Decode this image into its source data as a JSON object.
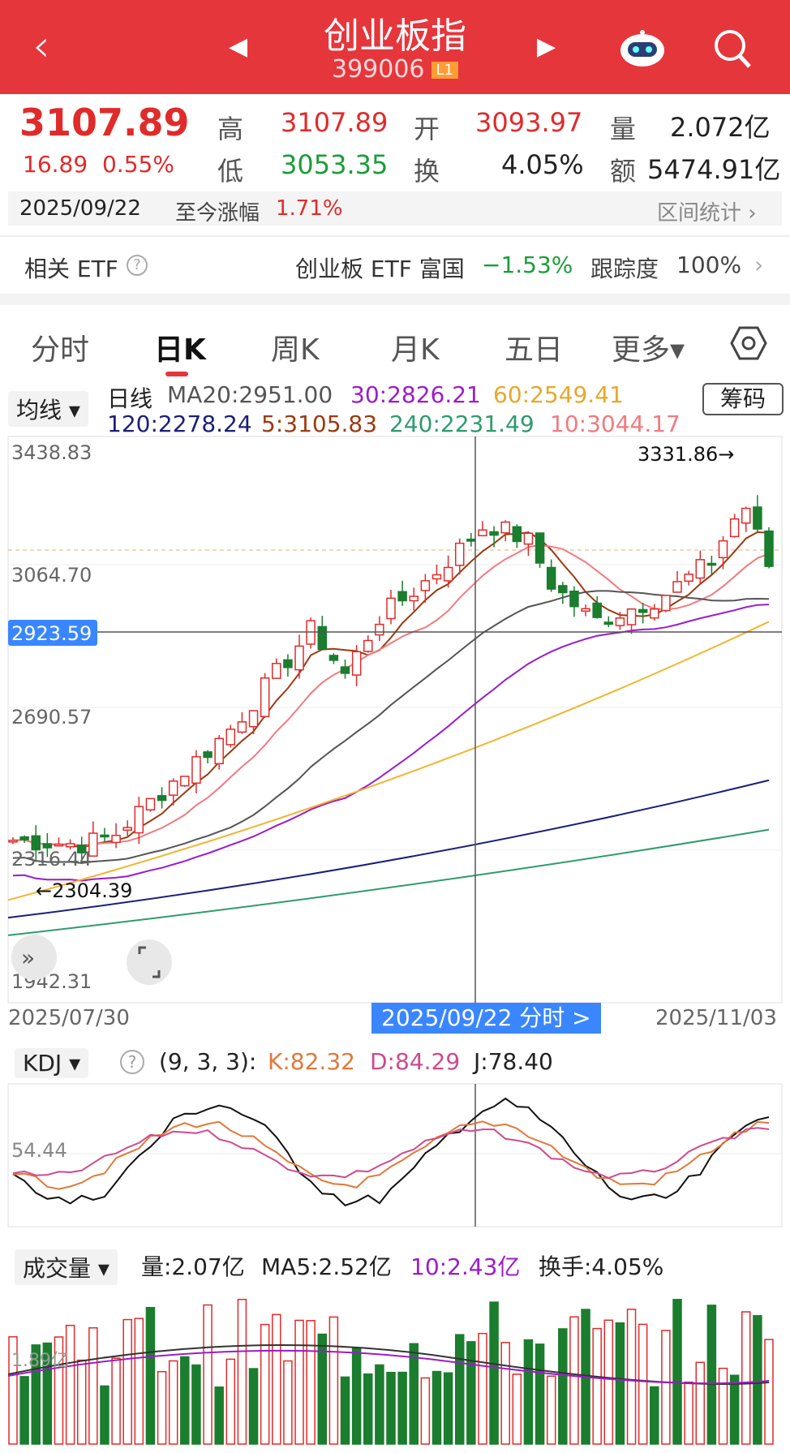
{
  "header": {
    "title": "创业板指",
    "code": "399006",
    "level": "L1"
  },
  "quote": {
    "price": "3107.89",
    "change": "16.89",
    "change_pct": "0.55%",
    "high_label": "高",
    "high": "3107.89",
    "open_label": "开",
    "open": "3093.97",
    "vol_label": "量",
    "vol": "2.072亿",
    "low_label": "低",
    "low": "3053.35",
    "turn_label": "换",
    "turn": "4.05%",
    "amt_label": "额",
    "amt": "5474.91亿"
  },
  "datebar": {
    "date": "2025/09/22",
    "since_label": "至今涨幅",
    "since_value": "1.71%",
    "stats_label": "区间统计 ›"
  },
  "etf": {
    "label": "相关 ETF",
    "name": "创业板 ETF 富国",
    "change": "−1.53%",
    "track_label": "跟踪度",
    "track_value": "100%"
  },
  "tabs": [
    "分时",
    "日K",
    "周K",
    "月K",
    "五日",
    "更多▾"
  ],
  "ma": {
    "selector": "均线 ▾",
    "period": "日线",
    "ma20": "MA20:2951.00",
    "ma30": "30:2826.21",
    "ma60": "60:2549.41",
    "ma120": "120:2278.24",
    "ma5": "5:3105.83",
    "ma240": "240:2231.49",
    "ma10": "10:3044.17",
    "chips": "筹码"
  },
  "kchart": {
    "y_labels": [
      "3438.83",
      "3064.70",
      "2690.57",
      "2316.44",
      "1942.31"
    ],
    "cursor_price": "2923.59",
    "max_label": "3331.86→",
    "min_label": "←2304.39",
    "x_start": "2025/07/30",
    "x_mid": "2025/09/22 分时 >",
    "x_end": "2025/11/03"
  },
  "kdj": {
    "selector": "KDJ ▾",
    "params": "(9, 3, 3):",
    "k": "K:82.32",
    "d": "D:84.29",
    "j": "J:78.40",
    "level": "54.44"
  },
  "volume": {
    "selector": "成交量 ▾",
    "vol": "量:2.07亿",
    "ma5": "MA5:2.52亿",
    "ma10": "10:2.43亿",
    "turn": "换手:4.05%",
    "level": "1.89亿"
  },
  "colors": {
    "red": "#e02b2b",
    "green": "#1b7d2e",
    "header": "#e5363c",
    "ma5": "#9b3b12",
    "ma10": "#f07b80",
    "ma20": "#555555",
    "ma30": "#9b1ccb",
    "ma60": "#f0b533",
    "ma120": "#1a1f7a",
    "ma240": "#2e9b6e",
    "cursor": "#3a86ff"
  }
}
